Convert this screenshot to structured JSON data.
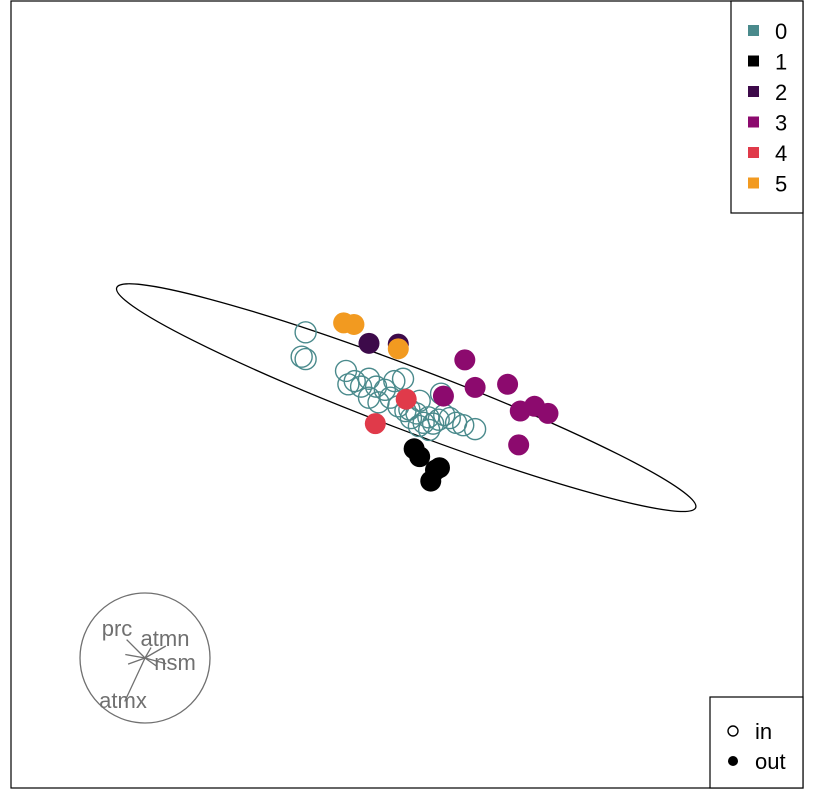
{
  "chart_data": {
    "type": "scatter",
    "title": "",
    "xlabel": "",
    "ylabel": "",
    "grid": false,
    "axes_shown": false,
    "xlim": [
      0,
      100
    ],
    "ylim": [
      0,
      100
    ],
    "colors": {
      "0": "#4A8A8C",
      "1": "#000000",
      "2": "#3D0A4A",
      "3": "#8C0A6E",
      "4": "#E03A4A",
      "5": "#F29A20"
    },
    "legend_groups": {
      "placement": "top-right",
      "entries": [
        {
          "label": "0",
          "color": "#4A8A8C"
        },
        {
          "label": "1",
          "color": "#000000"
        },
        {
          "label": "2",
          "color": "#3D0A4A"
        },
        {
          "label": "3",
          "color": "#8C0A6E"
        },
        {
          "label": "4",
          "color": "#E03A4A"
        },
        {
          "label": "5",
          "color": "#F29A20"
        }
      ]
    },
    "legend_shape": {
      "placement": "bottom-right",
      "entries": [
        {
          "label": "in",
          "symbol": "open-circle"
        },
        {
          "label": "out",
          "symbol": "filled-circle"
        }
      ]
    },
    "ellipse": {
      "center": [
        49.9,
        49.6
      ],
      "rx": 39.1,
      "ry": 4.0,
      "angle_deg": 20.8
    },
    "series": [
      {
        "group": "0",
        "status": "in",
        "points": [
          [
            37.2,
            57.9
          ],
          [
            36.7,
            54.8
          ],
          [
            37.2,
            54.5
          ],
          [
            42.3,
            53.0
          ],
          [
            42.6,
            51.3
          ],
          [
            43.4,
            51.7
          ],
          [
            44.2,
            51.0
          ],
          [
            45.2,
            52.0
          ],
          [
            46.1,
            51.0
          ],
          [
            47.2,
            50.6
          ],
          [
            48.4,
            51.7
          ],
          [
            49.5,
            52.0
          ],
          [
            45.2,
            49.6
          ],
          [
            46.4,
            49.0
          ],
          [
            47.9,
            49.6
          ],
          [
            48.9,
            48.5
          ],
          [
            49.8,
            47.9
          ],
          [
            50.5,
            47.0
          ],
          [
            51.2,
            47.6
          ],
          [
            52.1,
            46.4
          ],
          [
            52.7,
            47.1
          ],
          [
            53.3,
            46.3
          ],
          [
            54.0,
            46.8
          ],
          [
            54.7,
            47.4
          ],
          [
            55.4,
            47.0
          ],
          [
            56.2,
            46.4
          ],
          [
            57.1,
            46.1
          ],
          [
            58.6,
            45.6
          ],
          [
            51.5,
            46.0
          ],
          [
            52.8,
            45.5
          ],
          [
            54.3,
            50.1
          ],
          [
            50.3,
            48.1
          ],
          [
            51.6,
            49.2
          ]
        ]
      },
      {
        "group": "1",
        "status": "out",
        "points": [
          [
            50.9,
            43.1
          ],
          [
            51.6,
            42.1
          ],
          [
            53.6,
            40.4
          ],
          [
            54.1,
            40.7
          ],
          [
            53.0,
            39.0
          ]
        ]
      },
      {
        "group": "2",
        "status": "out",
        "points": [
          [
            45.2,
            56.5
          ],
          [
            48.9,
            56.4
          ]
        ]
      },
      {
        "group": "3",
        "status": "out",
        "points": [
          [
            57.3,
            54.4
          ],
          [
            54.6,
            49.8
          ],
          [
            58.6,
            50.9
          ],
          [
            62.7,
            51.3
          ],
          [
            64.3,
            47.9
          ],
          [
            66.1,
            48.5
          ],
          [
            67.8,
            47.6
          ],
          [
            64.1,
            43.6
          ]
        ]
      },
      {
        "group": "4",
        "status": "out",
        "points": [
          [
            49.9,
            49.4
          ],
          [
            46.0,
            46.3
          ]
        ]
      },
      {
        "group": "5",
        "status": "out",
        "points": [
          [
            42.0,
            59.1
          ],
          [
            43.3,
            58.9
          ],
          [
            48.9,
            55.8
          ]
        ]
      }
    ],
    "biplot": {
      "placement": "bottom-left",
      "variables": [
        {
          "name": "prc",
          "direction_deg": 135
        },
        {
          "name": "atmn",
          "direction_deg": 30
        },
        {
          "name": "nsm",
          "direction_deg": -15
        },
        {
          "name": "atmx",
          "direction_deg": -115
        }
      ]
    }
  }
}
